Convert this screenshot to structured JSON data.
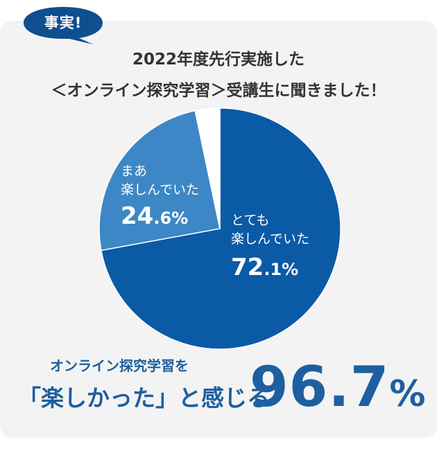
{
  "badge": {
    "text": "事実!"
  },
  "heading": {
    "line1": "2022年度先行実施した",
    "line2": "＜オンライン探究学習＞受講生に聞きました！"
  },
  "chart_data": {
    "type": "pie",
    "slices": [
      {
        "label_lines": [
          "とても",
          "楽しんでいた"
        ],
        "value": 72.1,
        "value_main": "72",
        "value_dec": ".1%",
        "color": "#0a5aa5"
      },
      {
        "label_lines": [
          "まあ",
          "楽しんでいた"
        ],
        "value": 24.6,
        "value_main": "24",
        "value_dec": ".6%",
        "color": "#3d87c6"
      },
      {
        "label_lines": [],
        "value": 3.3,
        "color": "#ffffff"
      }
    ]
  },
  "conclusion": {
    "line1": "オンライン探究学習を",
    "line2": "「楽しかった」と感じる",
    "value_main": "96.7",
    "value_unit": "%"
  },
  "colors": {
    "accent": "#1d5fa0",
    "bubble": "#0f4f8f"
  }
}
